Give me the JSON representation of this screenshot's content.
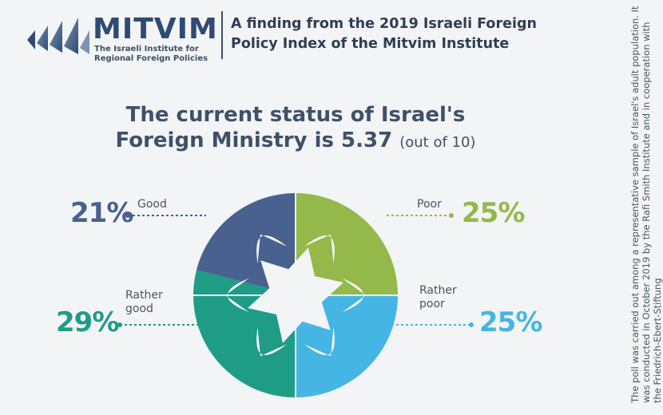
{
  "header": {
    "logo_name": "MITVIM",
    "logo_tagline_1": "The Israeli Institute for",
    "logo_tagline_2": "Regional Foreign Policies",
    "headline": "A finding from the 2019 Israeli Foreign Policy Index of the Mitvim Institute"
  },
  "side_note": "The poll was carried out among a representative sample of Israel's adult population. It was conducted in October 2019 by the Rafi Smith Institute and in cooperation with the Friedrich-Ebert-Stiftung",
  "chart_data": {
    "type": "pie",
    "title": "The current status of Israel's Foreign Ministry is 5.37",
    "subtitle": "(out of 10)",
    "slices": [
      {
        "label": "Poor",
        "value": 25,
        "display": "25%",
        "color": "#94b94a"
      },
      {
        "label": "Rather poor",
        "value": 25,
        "display": "25%",
        "color": "#45b5e4"
      },
      {
        "label": "Rather good",
        "value": 29,
        "display": "29%",
        "color": "#1e9c86"
      },
      {
        "label": "Good",
        "value": 21,
        "display": "21%",
        "color": "#48618e"
      }
    ]
  }
}
